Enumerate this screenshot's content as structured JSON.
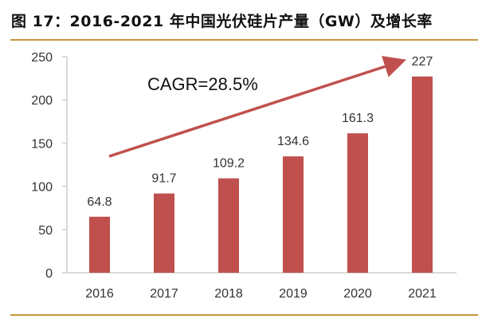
{
  "title": "图 17：2016-2021 年中国光伏硅片产量（GW）及增长率",
  "colors": {
    "bar": "#c0504d",
    "arrow": "#c0504d",
    "rule": "#c8963e",
    "axis": "#d9d9d9"
  },
  "chart_data": {
    "type": "bar",
    "title": "图 17：2016-2021 年中国光伏硅片产量（GW）及增长率",
    "categories": [
      "2016",
      "2017",
      "2018",
      "2019",
      "2020",
      "2021"
    ],
    "values": [
      64.8,
      91.7,
      109.2,
      134.6,
      161.3,
      227
    ],
    "data_labels": [
      "64.8",
      "91.7",
      "109.2",
      "134.6",
      "161.3",
      "227"
    ],
    "yticks": [
      "0",
      "50",
      "100",
      "150",
      "200",
      "250"
    ],
    "ylim": [
      0,
      250
    ],
    "xlabel": "",
    "ylabel": "",
    "grid": false,
    "annotation": "CAGR=28.5%"
  }
}
